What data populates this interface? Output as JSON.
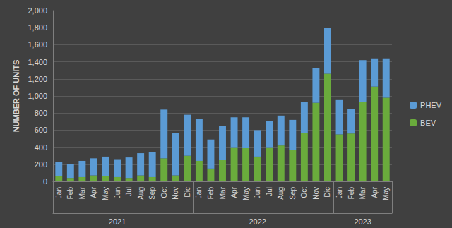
{
  "chart_data": {
    "type": "bar",
    "stacked": true,
    "y_label": "NUMBER OF UNITS",
    "categories": [
      "Jan",
      "Feb",
      "Mar",
      "Apr",
      "May",
      "Jun",
      "Jul",
      "Aug",
      "Sep",
      "Oct",
      "Nov",
      "Dic",
      "Jan",
      "Feb",
      "Mar",
      "Apr",
      "May",
      "Jun",
      "Jul",
      "Aug",
      "Sep",
      "Oct",
      "Nov",
      "Dic",
      "Jan",
      "Feb",
      "Mar",
      "Apr",
      "May"
    ],
    "category_groups": [
      {
        "label": "2021",
        "size": 12
      },
      {
        "label": "2022",
        "size": 12
      },
      {
        "label": "2023",
        "size": 5
      }
    ],
    "series": [
      {
        "name": "BEV",
        "color": "#6aab3c",
        "values": [
          60,
          40,
          50,
          70,
          60,
          50,
          40,
          70,
          50,
          270,
          70,
          300,
          240,
          150,
          250,
          400,
          390,
          290,
          400,
          420,
          370,
          570,
          920,
          1260,
          550,
          560,
          930,
          1110,
          980
        ]
      },
      {
        "name": "PHEV",
        "color": "#5b9bd5",
        "values": [
          170,
          160,
          190,
          200,
          230,
          210,
          240,
          260,
          290,
          570,
          500,
          480,
          490,
          340,
          400,
          350,
          360,
          310,
          310,
          350,
          350,
          360,
          410,
          540,
          410,
          290,
          490,
          330,
          460
        ]
      }
    ],
    "ylim": [
      0,
      2000
    ],
    "yticks": [
      0,
      200,
      400,
      600,
      800,
      1000,
      1200,
      1400,
      1600,
      1800,
      2000
    ],
    "grid": true,
    "legend": "right"
  }
}
